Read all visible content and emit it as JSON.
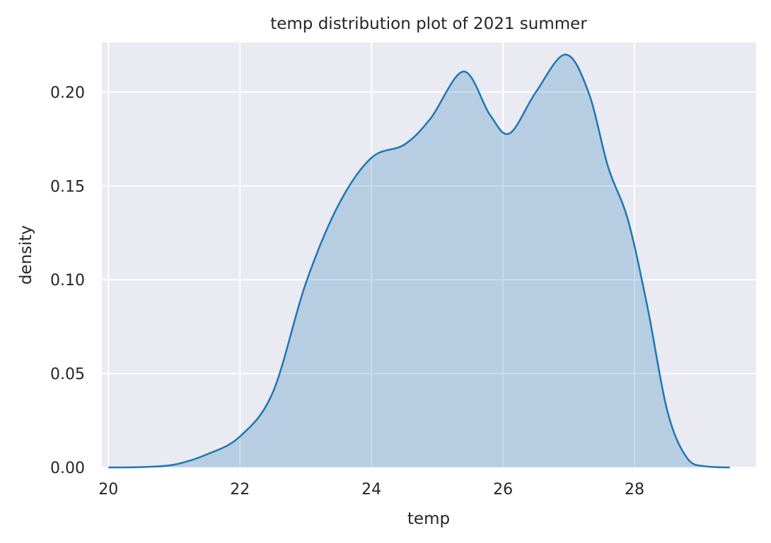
{
  "chart_data": {
    "type": "area",
    "title": "temp distribution plot of 2021 summer",
    "xlabel": "temp",
    "ylabel": "density",
    "xlim": [
      19.9,
      29.85
    ],
    "ylim": [
      0,
      0.2265
    ],
    "xticks": [
      20,
      22,
      24,
      26,
      28
    ],
    "xtick_labels": [
      "20",
      "22",
      "24",
      "26",
      "28"
    ],
    "yticks": [
      0.0,
      0.05,
      0.1,
      0.15,
      0.2
    ],
    "ytick_labels": [
      "0.00",
      "0.05",
      "0.10",
      "0.15",
      "0.20"
    ],
    "grid": true,
    "legend": "none",
    "series": [
      {
        "color": "#1f77b4",
        "x": [
          20.0,
          20.5,
          21.0,
          21.5,
          22.0,
          22.5,
          23.0,
          23.5,
          24.0,
          24.5,
          24.9,
          25.4,
          25.8,
          26.1,
          26.5,
          26.95,
          27.3,
          27.6,
          27.9,
          28.2,
          28.5,
          28.8,
          29.1,
          29.45
        ],
        "y": [
          0.0,
          0.0002,
          0.0015,
          0.007,
          0.0165,
          0.04,
          0.098,
          0.14,
          0.165,
          0.172,
          0.186,
          0.211,
          0.188,
          0.178,
          0.2,
          0.22,
          0.2,
          0.16,
          0.132,
          0.085,
          0.03,
          0.005,
          0.0005,
          0.0
        ]
      }
    ]
  }
}
